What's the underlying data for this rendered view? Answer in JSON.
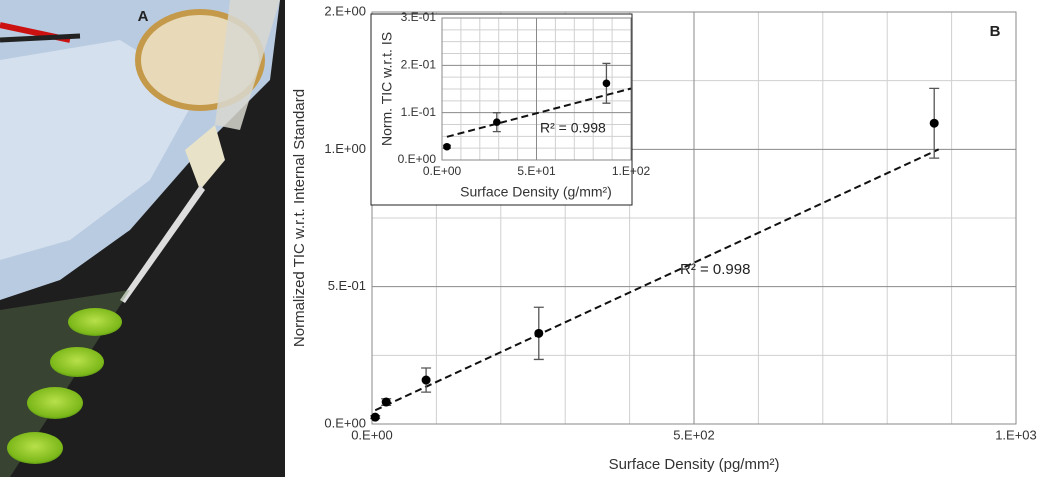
{
  "photo": {
    "label": "A"
  },
  "chart_data": [
    {
      "type": "scatter",
      "panel_label": "B",
      "x_label": "Surface Density (pg/mm²)",
      "y_label": "Normalized TIC w.r.t. Internal Standard",
      "annotation": "R² = 0.998",
      "x": [
        5,
        22,
        84,
        259,
        873
      ],
      "values": [
        0.025,
        0.08,
        0.16,
        0.33,
        1.095
      ],
      "errors": [
        0.005,
        0.012,
        0.044,
        0.095,
        0.127
      ],
      "color": "#000000",
      "trendline": {
        "x": [
          5,
          880
        ],
        "y": [
          0.05,
          1.0
        ]
      },
      "xlim": [
        0,
        1000
      ],
      "xticks": [
        {
          "value": 0,
          "label": "0.E+00"
        },
        {
          "value": 500,
          "label": "5.E+02"
        },
        {
          "value": 1000,
          "label": "1.E+03"
        }
      ],
      "ylim": [
        0,
        1.5
      ],
      "yticks": [
        {
          "value": 0,
          "label": "0.E+00"
        },
        {
          "value": 0.5,
          "label": "5.E-01"
        },
        {
          "value": 1.0,
          "label": "1.E+00"
        },
        {
          "value": 1.5,
          "label": "2.E+00"
        }
      ],
      "x_minor_grid": [
        100,
        200,
        300,
        400,
        600,
        700,
        800,
        900
      ],
      "y_minor_grid": [
        0.25,
        0.75,
        1.25
      ],
      "grid": true
    },
    {
      "type": "scatter",
      "x_label": "Surface Density (g/mm²)",
      "y_label": "Norm. TIC w.r.t. IS",
      "annotation": "R² = 0.998",
      "x": [
        2.6,
        29,
        87
      ],
      "values": [
        0.028,
        0.08,
        0.162
      ],
      "errors": [
        0.003,
        0.02,
        0.042
      ],
      "color": "#000000",
      "trendline": {
        "x": [
          2.6,
          100
        ],
        "y": [
          0.049,
          0.151
        ]
      },
      "xlim": [
        0,
        100
      ],
      "xticks": [
        {
          "value": 0,
          "label": "0.E+00"
        },
        {
          "value": 50,
          "label": "5.E+01"
        },
        {
          "value": 100,
          "label": "1.E+02"
        }
      ],
      "ylim": [
        0,
        0.3
      ],
      "yticks": [
        {
          "value": 0,
          "label": "0.E+00"
        },
        {
          "value": 0.1,
          "label": "1.E-01"
        },
        {
          "value": 0.2,
          "label": "2.E-01"
        },
        {
          "value": 0.3,
          "label": "3.E-01"
        }
      ],
      "x_minor_grid": [
        10,
        20,
        30,
        40,
        60,
        70,
        80,
        90
      ],
      "y_minor_grid": [
        0.025,
        0.05,
        0.075,
        0.125,
        0.15,
        0.175,
        0.225,
        0.25,
        0.275
      ],
      "grid": true
    }
  ]
}
